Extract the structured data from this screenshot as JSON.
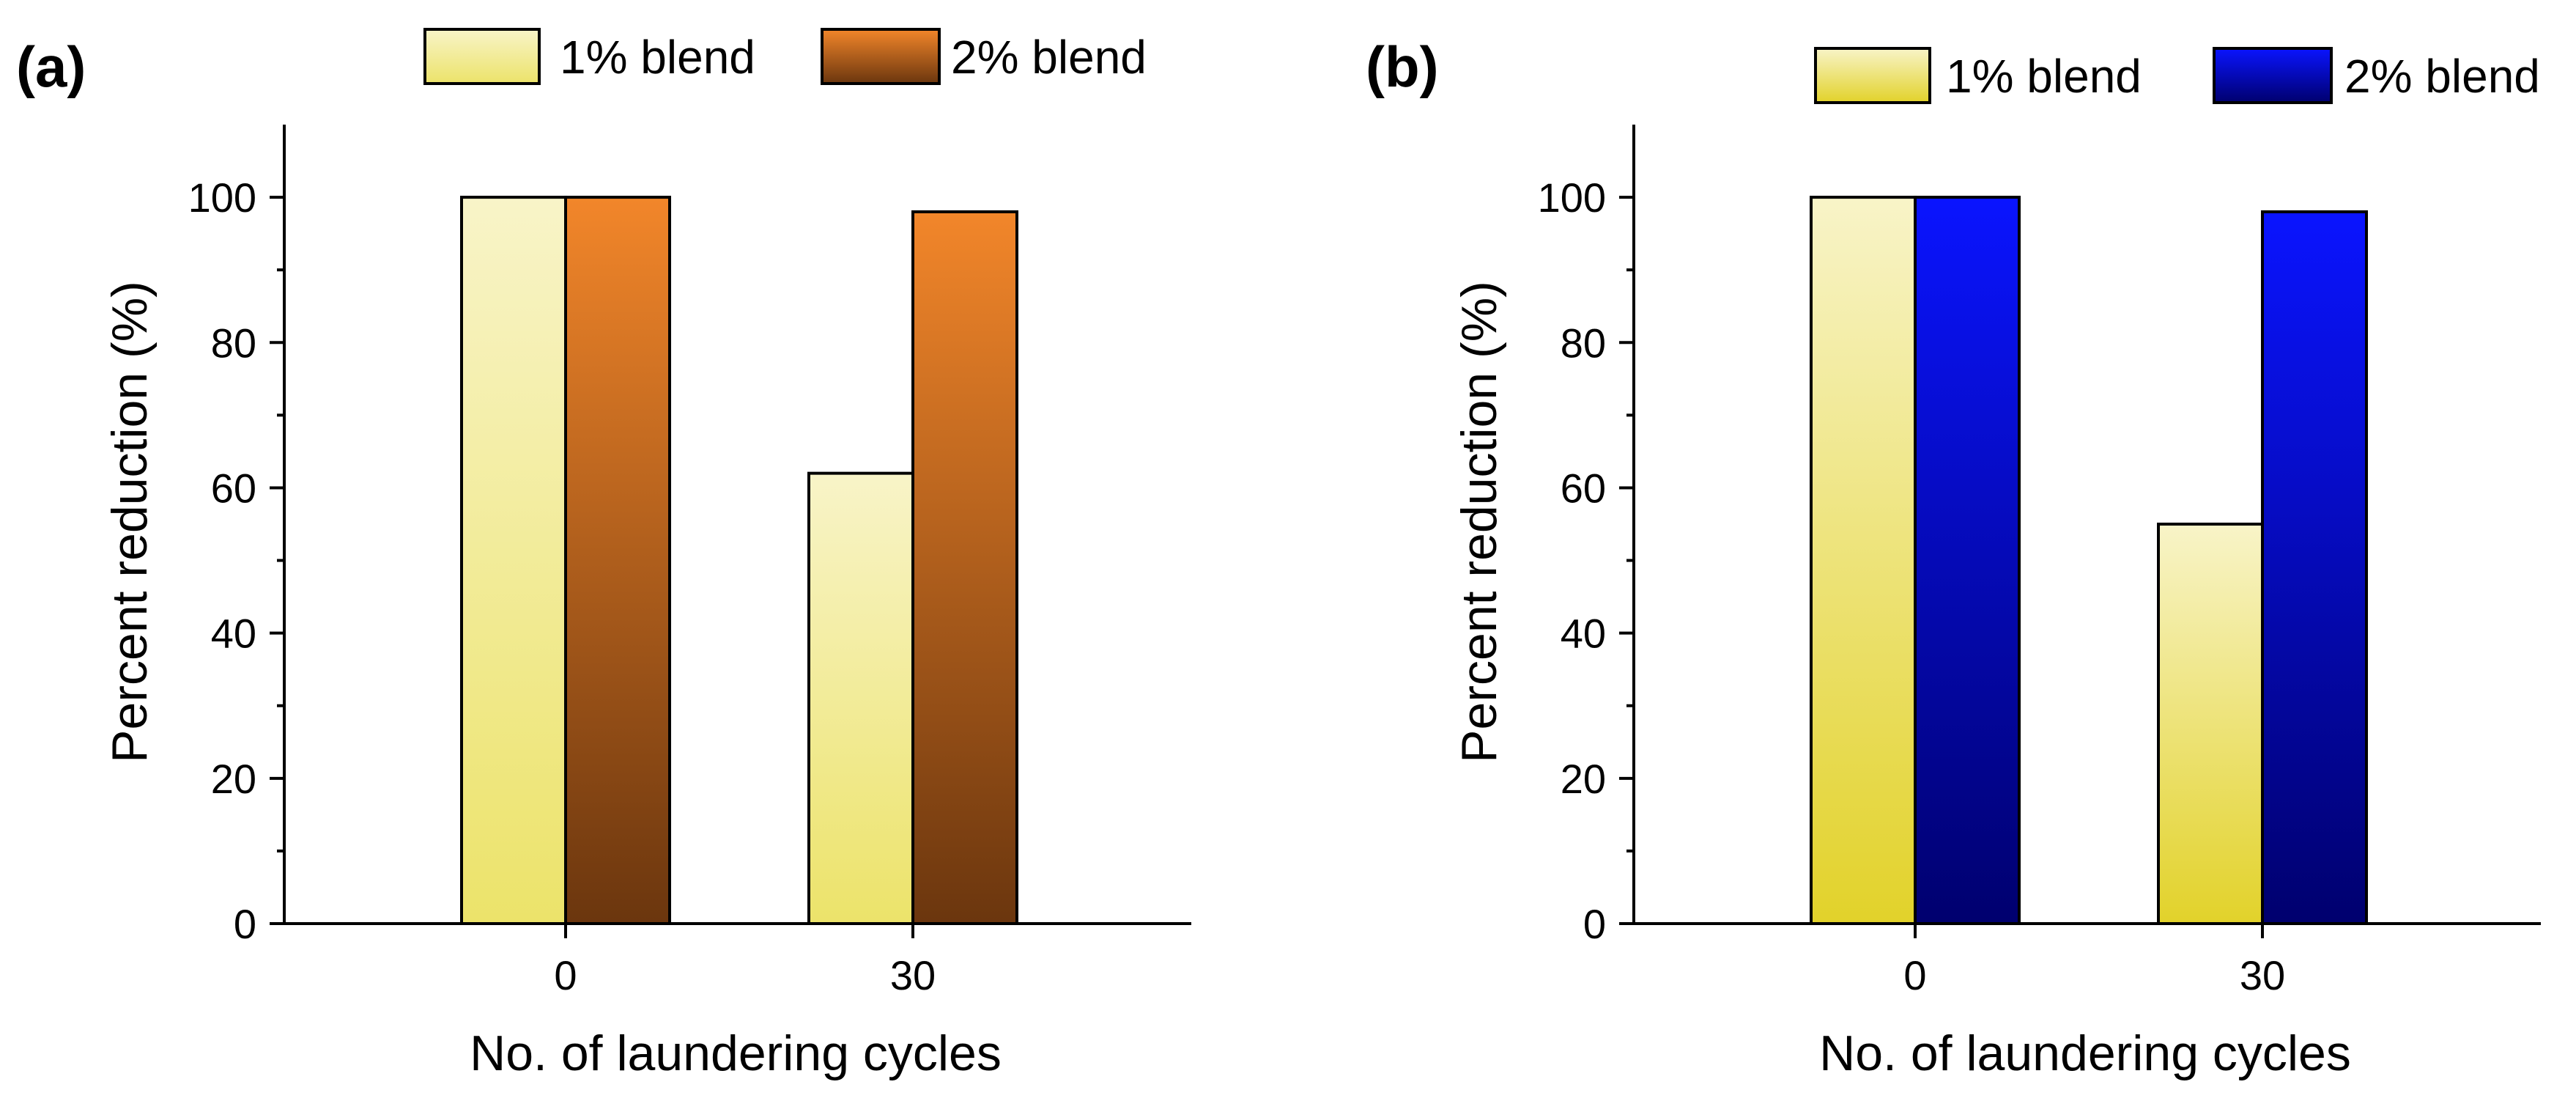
{
  "chart_data": [
    {
      "panel": "(a)",
      "type": "bar",
      "categories": [
        "0",
        "30"
      ],
      "series": [
        {
          "name": "1% blend",
          "values": [
            100,
            62
          ]
        },
        {
          "name": "2% blend",
          "values": [
            100,
            98
          ]
        }
      ],
      "xlabel": "No. of laundering cycles",
      "ylabel": "Percent reduction (%)",
      "ylim": [
        0,
        110
      ],
      "yticks": [
        0,
        20,
        40,
        60,
        80,
        100
      ],
      "legend_position": "top",
      "colors": {
        "s1_top": "#f8f4c8",
        "s1_bottom": "#ece36a",
        "s2_top": "#f2862a",
        "s2_bottom": "#6b360e"
      }
    },
    {
      "panel": "(b)",
      "type": "bar",
      "categories": [
        "0",
        "30"
      ],
      "series": [
        {
          "name": "1% blend",
          "values": [
            100,
            55
          ]
        },
        {
          "name": "2% blend",
          "values": [
            100,
            98
          ]
        }
      ],
      "xlabel": "No. of laundering cycles",
      "ylabel": "Percent reduction (%)",
      "ylim": [
        0,
        110
      ],
      "yticks": [
        0,
        20,
        40,
        60,
        80,
        100
      ],
      "legend_position": "top",
      "colors": {
        "s1_top": "#f8f4c8",
        "s1_bottom": "#e2d22a",
        "s2_top": "#0a14ff",
        "s2_bottom": "#00006e"
      }
    }
  ]
}
